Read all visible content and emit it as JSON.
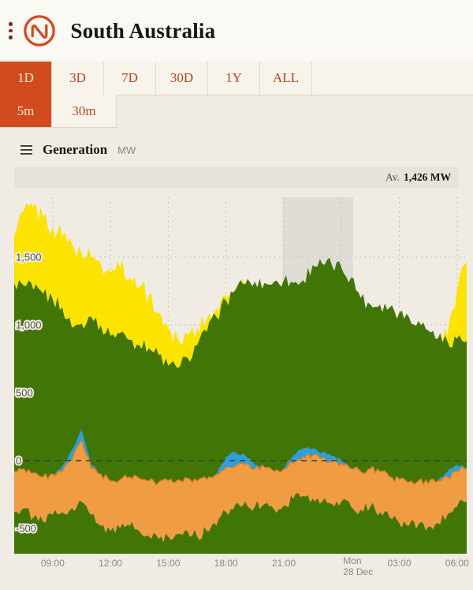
{
  "header": {
    "title": "South Australia"
  },
  "tabs": {
    "ranges": [
      {
        "label": "1D",
        "selected": true
      },
      {
        "label": "3D",
        "selected": false
      },
      {
        "label": "7D",
        "selected": false
      },
      {
        "label": "30D",
        "selected": false
      },
      {
        "label": "1Y",
        "selected": false
      },
      {
        "label": "ALL",
        "selected": false
      }
    ],
    "intervals": [
      {
        "label": "5m",
        "selected": true
      },
      {
        "label": "30m",
        "selected": false
      }
    ]
  },
  "panel": {
    "title": "Generation",
    "unit": "MW",
    "average_label": "Av.",
    "average_value": "1,426 MW"
  },
  "colors": {
    "accent": "#d14b1e",
    "wind": "#417505",
    "solar": "#fde300",
    "battery": "#2da0dc",
    "load": "#f09c42",
    "night_band": "#e0ddd6"
  },
  "chart_data": {
    "type": "area",
    "stacked": true,
    "title": "Generation",
    "ylabel": "MW",
    "average_shown": "Av. 1,426 MW",
    "x_hours_start": 7,
    "x_hours_end": 30.5,
    "interval_hours": 0.5,
    "ylim": [
      -686,
      1960
    ],
    "zero_line": 0,
    "grid": true,
    "night_band": {
      "from": 20.93,
      "to": 24.6
    },
    "x_ticks": [
      {
        "h": 9,
        "label": "09:00"
      },
      {
        "h": 12,
        "label": "12:00"
      },
      {
        "h": 15,
        "label": "15:00"
      },
      {
        "h": 18,
        "label": "18:00"
      },
      {
        "h": 21,
        "label": "21:00"
      },
      {
        "h": 24,
        "label": "Mon|28 Dec"
      },
      {
        "h": 27,
        "label": "03:00"
      },
      {
        "h": 30,
        "label": "06:00"
      }
    ],
    "y_ticks": [
      {
        "v": 1500,
        "label": "1,500"
      },
      {
        "v": 1000,
        "label": "1,000"
      },
      {
        "v": 500,
        "label": "500"
      },
      {
        "v": 0,
        "label": "0"
      },
      {
        "v": -500,
        "label": "-500"
      }
    ],
    "series": {
      "wind": {
        "color": "#417505",
        "top": [
          1310,
          1290,
          1260,
          1230,
          1190,
          1130,
          980,
          1010,
          1060,
          1000,
          920,
          940,
          890,
          850,
          830,
          780,
          700,
          680,
          760,
          850,
          950,
          1060,
          1180,
          1260,
          1300,
          1320,
          1310,
          1320,
          1330,
          1310,
          1330,
          1440,
          1450,
          1440,
          1420,
          1350,
          1200,
          1150,
          1150,
          1130,
          1090,
          1060,
          1030,
          960,
          900,
          880,
          900,
          880
        ]
      },
      "solar": {
        "color": "#fde300",
        "top": [
          1660,
          1840,
          1870,
          1800,
          1720,
          1650,
          1600,
          1520,
          1500,
          1450,
          1390,
          1420,
          1350,
          1280,
          1220,
          1090,
          980,
          900,
          930,
          980,
          1040,
          1120,
          1210,
          1270,
          1300,
          null,
          null,
          null,
          null,
          null,
          null,
          null,
          null,
          null,
          null,
          null,
          null,
          null,
          null,
          null,
          null,
          null,
          null,
          null,
          null,
          920,
          1250,
          1460
        ]
      },
      "battery": {
        "color": "#2da0dc",
        "top": [
          null,
          null,
          null,
          null,
          null,
          -40,
          80,
          230,
          -30,
          null,
          null,
          null,
          null,
          null,
          null,
          null,
          null,
          null,
          null,
          null,
          null,
          null,
          30,
          60,
          40,
          -30,
          null,
          null,
          null,
          40,
          90,
          90,
          60,
          30,
          0,
          null,
          null,
          null,
          null,
          null,
          null,
          null,
          null,
          null,
          null,
          -80,
          -30,
          null
        ]
      },
      "load": {
        "color": "#f09c42",
        "top": [
          -80,
          -60,
          -90,
          -120,
          -100,
          -80,
          0,
          150,
          -60,
          -100,
          -150,
          -140,
          -120,
          -130,
          -150,
          -160,
          -150,
          -140,
          -130,
          -150,
          -140,
          -100,
          -50,
          -40,
          -30,
          -60,
          -50,
          -80,
          -60,
          -20,
          30,
          40,
          20,
          -10,
          -20,
          -60,
          -80,
          -60,
          -80,
          -120,
          -140,
          -160,
          -150,
          -170,
          -150,
          -120,
          -80,
          -60
        ],
        "bottom": [
          -380,
          -350,
          -420,
          -450,
          -400,
          -380,
          -350,
          -300,
          -400,
          -480,
          -520,
          -500,
          -480,
          -520,
          -560,
          -580,
          -560,
          -540,
          -520,
          -560,
          -520,
          -480,
          -380,
          -320,
          -300,
          -340,
          -320,
          -360,
          -330,
          -280,
          -260,
          -280,
          -300,
          -320,
          -300,
          -340,
          -360,
          -340,
          -380,
          -420,
          -460,
          -480,
          -470,
          -490,
          -460,
          -400,
          -340,
          -300
        ]
      }
    }
  }
}
